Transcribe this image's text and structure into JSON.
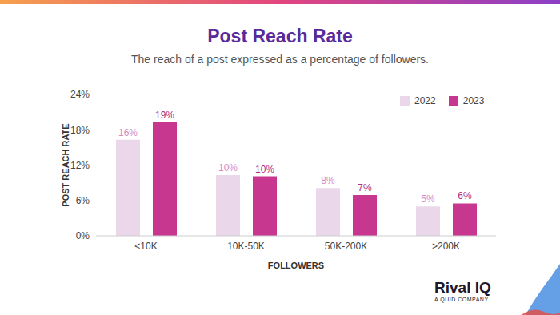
{
  "chart_data": {
    "type": "bar",
    "title": "Post Reach Rate",
    "subtitle": "The reach of a post expressed as a percentage of followers.",
    "x_label": "FOLLOWERS",
    "y_label": "POST REACH RATE",
    "categories": [
      "<10K",
      "10K-50K",
      "50K-200K",
      ">200K"
    ],
    "series": [
      {
        "name": "2022",
        "color": "#ead7ea",
        "values": [
          16.3,
          10.3,
          8.1,
          5.0
        ],
        "value_labels": [
          "16%",
          "10%",
          "8%",
          "5%"
        ]
      },
      {
        "name": "2023",
        "color": "#c8378f",
        "values": [
          19.3,
          10.1,
          6.9,
          5.5
        ],
        "value_labels": [
          "19%",
          "10%",
          "7%",
          "6%"
        ]
      }
    ],
    "ylim": [
      0,
      24
    ],
    "yticks": [
      {
        "value": 0,
        "label": "0%"
      },
      {
        "value": 6,
        "label": "6%"
      },
      {
        "value": 12,
        "label": "12%"
      },
      {
        "value": 18,
        "label": "18%"
      },
      {
        "value": 24,
        "label": "24%"
      }
    ],
    "grid": false,
    "legend": "top-right",
    "data_labels": true
  },
  "branding": {
    "name": "Rival IQ",
    "tagline": "A QUID COMPANY"
  }
}
